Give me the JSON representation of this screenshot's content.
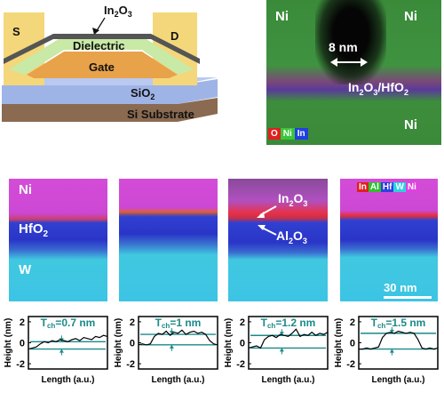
{
  "device": {
    "source": "S",
    "drain": "D",
    "channel": "In",
    "channel_sub": "2",
    "channel_tail": "O",
    "channel_sub2": "3",
    "dielectric": "Dielectric",
    "gate": "Gate",
    "sio2": "SiO",
    "sio2_sub": "2",
    "substrate": "Si Substrate"
  },
  "eds_top": {
    "ni_tl": "Ni",
    "ni_tr": "Ni",
    "ni_br": "Ni",
    "scale": "8 nm",
    "interface": "In",
    "interface_s1": "2",
    "interface_m": "O",
    "interface_s2": "3",
    "interface_t": "/HfO",
    "interface_s3": "2",
    "legend": [
      "O",
      "Ni",
      "In"
    ],
    "legend_colors": [
      "#e02020",
      "#38c838",
      "#2040e0"
    ]
  },
  "eds_row": {
    "ni": "Ni",
    "hfo": "HfO",
    "hfo_sub": "2",
    "w": "W",
    "in2o3": "In",
    "in2o3_s1": "2",
    "in2o3_m": "O",
    "in2o3_s2": "3",
    "al2o3": "Al",
    "al2o3_s1": "2",
    "al2o3_m": "O",
    "al2o3_s2": "3",
    "scalebar": "30 nm",
    "legend": [
      "In",
      "Al",
      "Hf",
      "W",
      "Ni"
    ],
    "legend_colors": [
      "#e02020",
      "#30c030",
      "#3040e0",
      "#30d0e0",
      "#e040e0"
    ]
  },
  "chart_data": [
    {
      "type": "line",
      "title": "T_ch=0.7 nm",
      "xlabel": "Length (a.u.)",
      "ylabel": "Height (nm)",
      "ylim": [
        -2.5,
        2.5
      ],
      "yticks": [
        -2,
        0,
        2
      ],
      "band": [
        -0.6,
        0.1
      ],
      "x": [
        0,
        1,
        2,
        3,
        4,
        5,
        6,
        7,
        8,
        9,
        10,
        11,
        12,
        13,
        14,
        15,
        16,
        17,
        18,
        19,
        20
      ],
      "values": [
        -0.6,
        -0.5,
        -0.4,
        -0.1,
        0.1,
        0.0,
        0.2,
        0.1,
        0.3,
        0.2,
        0.1,
        0.3,
        0.4,
        0.2,
        0.5,
        0.4,
        0.3,
        0.6,
        0.5,
        0.7,
        0.6
      ]
    },
    {
      "type": "line",
      "title": "T_ch=1 nm",
      "xlabel": "Length (a.u.)",
      "ylabel": "Height (nm)",
      "ylim": [
        -2.5,
        2.5
      ],
      "yticks": [
        -2,
        0,
        2
      ],
      "band": [
        -0.2,
        0.8
      ],
      "x": [
        0,
        1,
        2,
        3,
        4,
        5,
        6,
        7,
        8,
        9,
        10,
        11,
        12,
        13,
        14,
        15,
        16,
        17,
        18,
        19,
        20
      ],
      "values": [
        -0.2,
        -0.1,
        -0.2,
        -0.1,
        0.6,
        0.9,
        0.8,
        1.1,
        0.7,
        1.0,
        0.9,
        1.2,
        0.8,
        1.0,
        1.1,
        0.9,
        1.0,
        0.8,
        0.2,
        -0.1,
        -0.2
      ]
    },
    {
      "type": "line",
      "title": "T_ch=1.2 nm",
      "xlabel": "Length (a.u.)",
      "ylabel": "Height (nm)",
      "ylim": [
        -2.5,
        2.5
      ],
      "yticks": [
        -2,
        0,
        2
      ],
      "band": [
        -0.5,
        0.7
      ],
      "x": [
        0,
        1,
        2,
        3,
        4,
        5,
        6,
        7,
        8,
        9,
        10,
        11,
        12,
        13,
        14,
        15,
        16,
        17,
        18,
        19,
        20
      ],
      "values": [
        -0.5,
        -0.4,
        -0.3,
        -0.5,
        0.3,
        0.6,
        0.7,
        0.5,
        0.8,
        0.7,
        0.6,
        0.9,
        1.3,
        0.6,
        0.8,
        0.7,
        1.0,
        0.7,
        0.9,
        0.8,
        1.0
      ]
    },
    {
      "type": "line",
      "title": "T_ch=1.5 nm",
      "xlabel": "Length (a.u.)",
      "ylabel": "Height (nm)",
      "ylim": [
        -2.5,
        2.5
      ],
      "yticks": [
        -2,
        0,
        2
      ],
      "band": [
        -0.6,
        0.9
      ],
      "x": [
        0,
        1,
        2,
        3,
        4,
        5,
        6,
        7,
        8,
        9,
        10,
        11,
        12,
        13,
        14,
        15,
        16,
        17,
        18,
        19,
        20
      ],
      "values": [
        -0.6,
        -0.6,
        -0.5,
        -0.6,
        -0.5,
        -0.4,
        0.5,
        0.9,
        1.0,
        0.9,
        1.1,
        1.0,
        0.9,
        1.0,
        0.9,
        0.3,
        -0.5,
        -0.6,
        -0.5,
        -0.6,
        -0.5
      ]
    }
  ]
}
